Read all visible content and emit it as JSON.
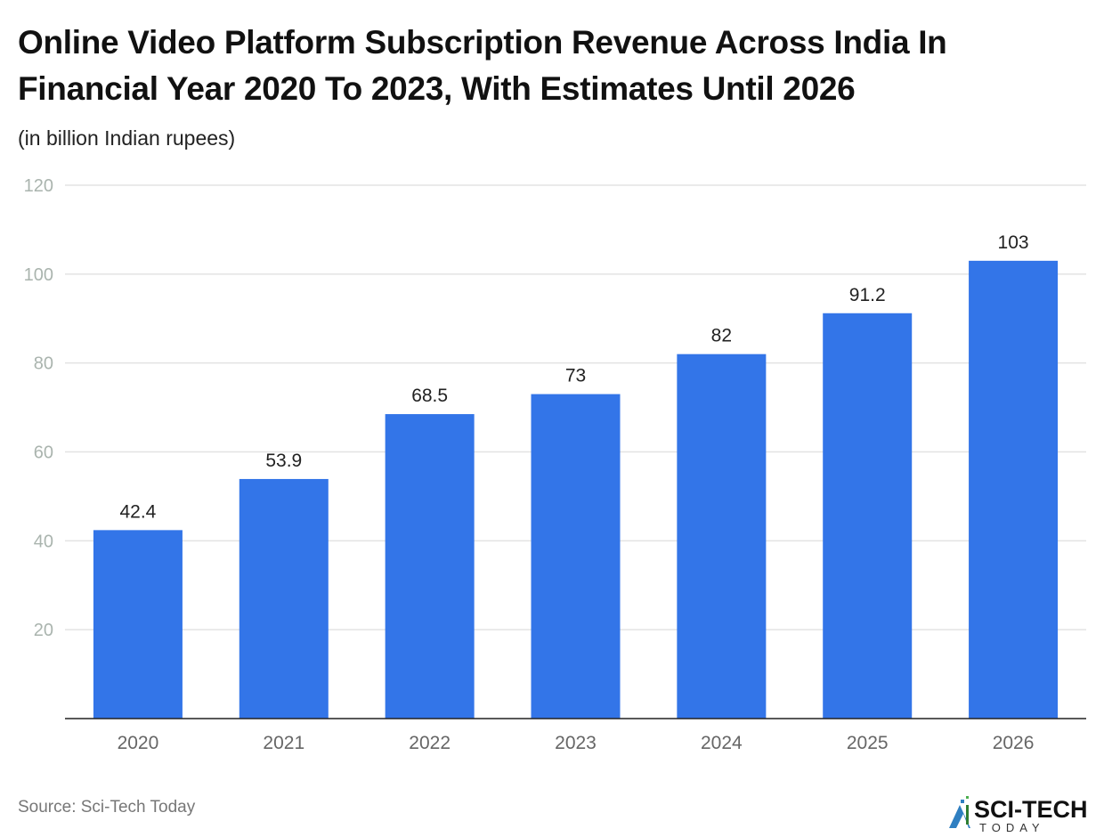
{
  "chart_data": {
    "type": "bar",
    "title": "Online Video Platform Subscription Revenue Across India In Financial Year 2020 To 2023, With Estimates Until 2026",
    "subtitle": "(in billion Indian rupees)",
    "categories": [
      "2020",
      "2021",
      "2022",
      "2023",
      "2024",
      "2025",
      "2026"
    ],
    "values": [
      42.4,
      53.9,
      68.5,
      73,
      82,
      91.2,
      103
    ],
    "data_labels": [
      "42.4",
      "53.9",
      "68.5",
      "73",
      "82",
      "91.2",
      "103"
    ],
    "xlabel": "",
    "ylabel": "",
    "ylim": [
      0,
      120
    ],
    "yticks": [
      "20",
      "40",
      "60",
      "80",
      "100",
      "120"
    ],
    "grid": true,
    "bar_color": "#3375E8"
  },
  "source": "Source: Sci-Tech Today",
  "logo": {
    "text": "SCI-TECH",
    "subtext": "TODAY"
  }
}
